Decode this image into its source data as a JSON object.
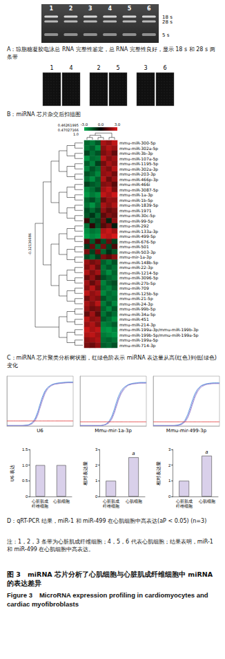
{
  "gel": {
    "lanes": [
      "1",
      "2",
      "3",
      "4",
      "5",
      "6"
    ],
    "band_labels": [
      "18 s",
      "28 s",
      "5 s"
    ]
  },
  "chip_scan": {
    "lanes": [
      "1",
      "4",
      "2",
      "5",
      "3",
      "6"
    ]
  },
  "chart_data": [
    {
      "type": "heatmap",
      "rows": [
        "mmu-miR-300-5p",
        "mmu-miR-302a-5p",
        "mmu-miR-3b-3p",
        "mmu-miR-107a-5p",
        "mmu-miR-1195-5p",
        "mmu-miR-302a-3p",
        "mmu-miR-203-3p",
        "mmu-miR-466p-3p",
        "mmu-miR-466i",
        "mmu-miR-3087-5p",
        "mmu-miR-1a-3p",
        "mmu-miR-1b-5p",
        "mmu-miR-1839-5p",
        "mmu-miR-1971",
        "mmu-miR-30c-5p",
        "mmu-miR-99-5p",
        "mmu-miR-292",
        "mmu-miR-133a-3p",
        "mmu-miR-499-5p",
        "mmu-miR-676-5p",
        "mmu-miR-501",
        "mmu-miR-503-3p",
        "mmu-mir-1a-3p",
        "mmu-miR-148b-5p",
        "mmu-miR-22-3p",
        "mmu-miR-1214-5p",
        "mmu-miR-3096-5p",
        "mmu-miR-27b-5p",
        "mmu-miR-709",
        "mmu-miR-125b-5p",
        "mmu-miR-21-5p",
        "mmu-miR-24-3p",
        "mmu-miR-99b-5p",
        "mmu-miR-34a-5p",
        "mmu-miR-451",
        "mmu-miR-214-3p",
        "mmu-miR-199a-3p/mmu-miR-199b-3p",
        "mmu-miR-199b-5p/mmu-miR-199a-5p",
        "mmu-miR-199a-5p",
        "mmu-miR-714-3p"
      ],
      "cells": [
        [
          -1.8,
          -2.1,
          -1.5,
          2.2,
          1.9,
          2.5
        ],
        [
          -2.0,
          -1.6,
          -2.4,
          1.8,
          2.3,
          2.0
        ],
        [
          -1.2,
          -1.9,
          -1.4,
          1.6,
          2.0,
          1.3
        ],
        [
          -2.5,
          -1.8,
          -2.0,
          2.4,
          1.7,
          2.1
        ],
        [
          -1.6,
          -2.2,
          -1.1,
          1.5,
          2.2,
          1.8
        ],
        [
          -2.2,
          -1.4,
          -1.9,
          2.0,
          1.6,
          2.4
        ],
        [
          -1.4,
          -1.7,
          -2.3,
          1.9,
          2.1,
          1.5
        ],
        [
          -1.9,
          -2.4,
          -1.6,
          2.3,
          1.4,
          2.0
        ],
        [
          -1.1,
          -1.5,
          -1.8,
          1.7,
          1.9,
          1.2
        ],
        [
          -2.3,
          -1.9,
          -1.3,
          2.1,
          2.5,
          1.6
        ],
        [
          -2.6,
          -2.1,
          -2.4,
          2.5,
          2.2,
          2.7
        ],
        [
          -1.7,
          -1.3,
          -2.0,
          1.4,
          2.0,
          1.9
        ],
        [
          -2.0,
          -2.5,
          -1.7,
          2.2,
          1.8,
          2.3
        ],
        [
          -1.3,
          -1.8,
          -1.2,
          1.9,
          1.3,
          1.6
        ],
        [
          -1.5,
          -0.9,
          -1.8,
          1.2,
          1.7,
          1.4
        ],
        [
          0.8,
          -1.6,
          -1.2,
          1.5,
          -0.6,
          1.9
        ],
        [
          -1.9,
          0.6,
          -1.4,
          1.1,
          1.6,
          -0.5
        ],
        [
          -2.4,
          -2.0,
          -2.2,
          2.3,
          2.6,
          2.1
        ],
        [
          -2.7,
          -2.3,
          -2.5,
          2.6,
          2.4,
          2.8
        ],
        [
          1.2,
          -1.5,
          0.9,
          -1.3,
          1.4,
          -1.1
        ],
        [
          -1.0,
          1.3,
          -1.6,
          1.5,
          -1.2,
          1.0
        ],
        [
          1.6,
          -1.1,
          1.4,
          -1.7,
          -0.8,
          -1.5
        ],
        [
          -1.3,
          -1.8,
          -1.0,
          1.6,
          1.2,
          1.8
        ],
        [
          2.0,
          1.5,
          1.8,
          -1.6,
          -2.1,
          -1.4
        ],
        [
          1.7,
          2.2,
          1.4,
          -2.0,
          -1.5,
          -1.9
        ],
        [
          2.3,
          1.6,
          2.1,
          -1.8,
          -2.4,
          -1.7
        ],
        [
          1.4,
          1.9,
          1.1,
          -1.3,
          -1.7,
          -2.0
        ],
        [
          2.1,
          1.3,
          1.9,
          -2.2,
          -1.6,
          -1.3
        ],
        [
          1.8,
          2.4,
          1.5,
          -1.9,
          -2.2,
          -1.6
        ],
        [
          2.5,
          1.9,
          2.2,
          -2.3,
          -1.8,
          -2.1
        ],
        [
          1.5,
          2.0,
          1.7,
          -1.4,
          -2.0,
          -1.8
        ],
        [
          2.2,
          1.7,
          2.4,
          -2.1,
          -1.5,
          -2.3
        ],
        [
          1.9,
          1.4,
          1.6,
          -1.7,
          -2.3,
          -1.5
        ],
        [
          1.3,
          2.1,
          1.2,
          -2.0,
          -1.4,
          -1.9
        ],
        [
          2.4,
          1.8,
          2.0,
          -1.5,
          -1.9,
          -2.4
        ],
        [
          2.0,
          2.3,
          1.7,
          -2.2,
          -2.0,
          -1.6
        ],
        [
          2.6,
          2.2,
          2.5,
          -2.4,
          -2.6,
          -2.2
        ],
        [
          2.3,
          2.5,
          2.1,
          -2.1,
          -2.3,
          -2.5
        ],
        [
          1.8,
          2.0,
          2.3,
          -1.9,
          -1.7,
          -2.0
        ],
        [
          1.6,
          1.4,
          1.9,
          -1.6,
          -1.8,
          -1.4
        ]
      ],
      "colorbar": {
        "range": [
          -3,
          3
        ],
        "ticks": [
          {
            "value": -3,
            "label": "-3.0"
          },
          {
            "value": 0,
            "label": "0.0"
          },
          {
            "value": 3,
            "label": "3.0"
          }
        ],
        "colors": [
          "#00b050",
          "#000000",
          "#e41a1c"
        ]
      },
      "tree_labels": [
        "0.46261995",
        "0.47027166",
        "1.0",
        "-0.32136686"
      ],
      "tick_labels": "y"
    },
    {
      "type": "line",
      "title": "U6",
      "x": [
        0,
        4,
        8,
        12,
        14,
        16,
        18,
        20,
        22,
        24,
        26,
        28,
        30,
        34,
        38,
        40
      ],
      "series": [
        {
          "color": "#6b6bd6",
          "values": [
            0.01,
            0.01,
            0.01,
            0.02,
            0.04,
            0.1,
            0.24,
            0.48,
            0.72,
            0.88,
            0.96,
            1.0,
            1.02,
            1.04,
            1.05,
            1.05
          ]
        },
        {
          "color": "#4a90d9",
          "values": [
            0.01,
            0.01,
            0.01,
            0.02,
            0.05,
            0.12,
            0.28,
            0.53,
            0.76,
            0.9,
            0.97,
            1.01,
            1.03,
            1.05,
            1.06,
            1.06
          ]
        },
        {
          "color": "#9a7fc8",
          "values": [
            0.01,
            0.01,
            0.01,
            0.01,
            0.03,
            0.08,
            0.2,
            0.43,
            0.67,
            0.85,
            0.94,
            0.99,
            1.01,
            1.03,
            1.04,
            1.04
          ]
        },
        {
          "color": "#e03030",
          "values": [
            0.12,
            0.12,
            0.12,
            0.12,
            0.12,
            0.12,
            0.12,
            0.12,
            0.12,
            0.12,
            0.12,
            0.12,
            0.12,
            0.12,
            0.12,
            0.12
          ]
        }
      ],
      "xlim": [
        0,
        40
      ],
      "ylim": [
        0,
        1.2
      ],
      "tick_labels": false,
      "grid": false
    },
    {
      "type": "line",
      "title": "Mmu-mir-1a-3p",
      "x": [
        0,
        4,
        8,
        12,
        14,
        16,
        18,
        20,
        22,
        24,
        26,
        28,
        30,
        34,
        38,
        40
      ],
      "series": [
        {
          "color": "#6b6bd6",
          "values": [
            0.01,
            0.01,
            0.01,
            0.01,
            0.02,
            0.05,
            0.12,
            0.28,
            0.52,
            0.74,
            0.88,
            0.96,
            1.0,
            1.03,
            1.04,
            1.04
          ]
        },
        {
          "color": "#4a90d9",
          "values": [
            0.01,
            0.01,
            0.01,
            0.01,
            0.02,
            0.06,
            0.15,
            0.33,
            0.58,
            0.79,
            0.91,
            0.97,
            1.01,
            1.04,
            1.05,
            1.05
          ]
        },
        {
          "color": "#9a7fc8",
          "values": [
            0.01,
            0.01,
            0.01,
            0.01,
            0.02,
            0.04,
            0.1,
            0.24,
            0.47,
            0.7,
            0.85,
            0.94,
            0.99,
            1.02,
            1.03,
            1.03
          ]
        },
        {
          "color": "#e03030",
          "values": [
            0.1,
            0.1,
            0.1,
            0.1,
            0.1,
            0.1,
            0.1,
            0.1,
            0.1,
            0.1,
            0.1,
            0.1,
            0.1,
            0.1,
            0.1,
            0.1
          ]
        }
      ],
      "xlim": [
        0,
        40
      ],
      "ylim": [
        0,
        1.2
      ],
      "tick_labels": false,
      "grid": false
    },
    {
      "type": "line",
      "title": "Mmu-mir-499-3p",
      "x": [
        0,
        4,
        8,
        12,
        14,
        16,
        18,
        20,
        22,
        24,
        26,
        28,
        30,
        34,
        38,
        40
      ],
      "series": [
        {
          "color": "#6b6bd6",
          "values": [
            0.01,
            0.01,
            0.01,
            0.01,
            0.01,
            0.03,
            0.07,
            0.17,
            0.36,
            0.6,
            0.8,
            0.92,
            0.98,
            1.02,
            1.03,
            1.03
          ]
        },
        {
          "color": "#4a90d9",
          "values": [
            0.01,
            0.01,
            0.01,
            0.01,
            0.02,
            0.04,
            0.09,
            0.21,
            0.42,
            0.66,
            0.84,
            0.94,
            0.99,
            1.03,
            1.04,
            1.04
          ]
        },
        {
          "color": "#9a7fc8",
          "values": [
            0.01,
            0.01,
            0.01,
            0.01,
            0.01,
            0.02,
            0.06,
            0.14,
            0.31,
            0.55,
            0.76,
            0.89,
            0.96,
            1.01,
            1.02,
            1.02
          ]
        },
        {
          "color": "#e03030",
          "values": [
            0.1,
            0.1,
            0.1,
            0.1,
            0.1,
            0.1,
            0.1,
            0.1,
            0.1,
            0.1,
            0.1,
            0.1,
            0.1,
            0.1,
            0.1,
            0.1
          ]
        }
      ],
      "xlim": [
        0,
        40
      ],
      "ylim": [
        0,
        1.2
      ],
      "tick_labels": false,
      "grid": false
    },
    {
      "type": "bar",
      "ylabel": "U6 表达",
      "categories": [
        "心脏肌成纤维细胞",
        "心肌细胞"
      ],
      "values": [
        1,
        1
      ],
      "color": "#d9d0ea",
      "ylim": [
        0,
        1.5
      ],
      "yticks": [
        0,
        0.5,
        {
          "value": 1,
          "label": "1.0"
        },
        1.5
      ],
      "grid": false
    },
    {
      "type": "bar",
      "ylabel": "相对表达量",
      "categories": [
        "心脏肌成纤维细胞",
        "心肌细胞"
      ],
      "values": [
        1,
        2.5
      ],
      "color": "#d9d0ea",
      "ylim": [
        0,
        3
      ],
      "yticks": [
        0,
        1,
        2,
        3
      ],
      "grid": false,
      "annotations": [
        {
          "category": "心肌细胞",
          "text": "a"
        }
      ]
    },
    {
      "type": "bar",
      "ylabel": "相对表达量",
      "categories": [
        "心脏肌成纤维细胞",
        "心肌细胞"
      ],
      "values": [
        1,
        2.6
      ],
      "color": "#d9d0ea",
      "ylim": [
        0,
        3
      ],
      "yticks": [
        0,
        1,
        2,
        3
      ],
      "grid": false,
      "annotations": [
        {
          "category": "心肌细胞",
          "text": "a"
        }
      ]
    }
  ],
  "captions": {
    "A": "A：琼脂糖凝胶电泳总 RNA 完整性鉴定，总 RNA 完整性良好，显示 18 s 和 28 s 两条带",
    "B": "B：miRNA 芯片杂交后扫描图",
    "C": "C：miRNA 芯片聚类分析树状图，红绿色阶表示 miRNA 表达量从高(红色)到低(绿色)变化",
    "D": "D：qRT-PCR 结果，miR-1 和 miR-499 在心肌细胞中高表达(aP < 0.05) (n=3)"
  },
  "note": "注：1，2，3 条带为心脏肌成纤维细胞；4，5，6 代表心肌细胞；结果表明，miR-1 和 miR-499 在心肌细胞中高表达。",
  "figure_title": {
    "cn": "图 3　miRNA 芯片分析了心肌细胞与心脏肌成纤维细胞中 miRNA 的表达差异",
    "en": "Figure 3　MicroRNA expression profiling in cardiomyocytes and cardiac myofibroblasts"
  }
}
